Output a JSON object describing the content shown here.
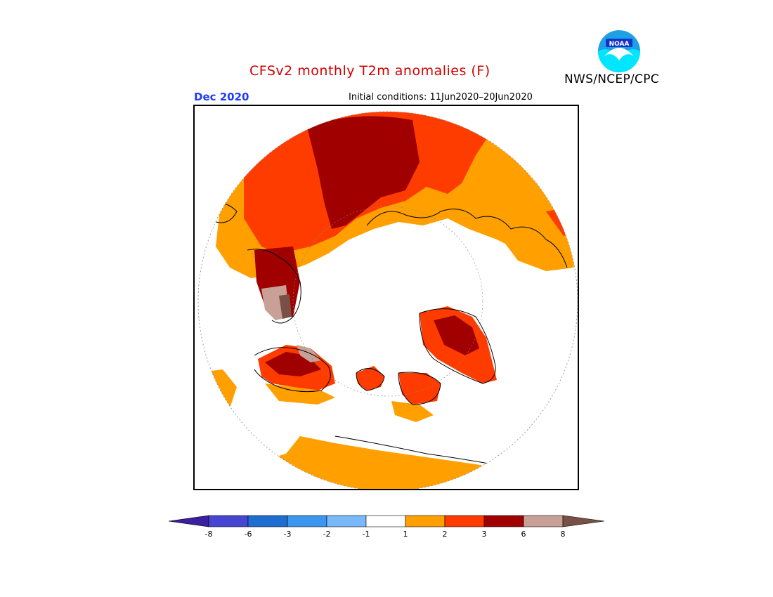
{
  "header": {
    "title": "CFSv2 monthly T2m anomalies (F)",
    "organization": "NWS/NCEP/CPC",
    "logo_text": "NOAA",
    "month": "Dec 2020",
    "initial_conditions": "Initial conditions: 11Jun2020–20Jun2020"
  },
  "colorbar": {
    "labels": [
      "-8",
      "-6",
      "-3",
      "-2",
      "-1",
      "1",
      "2",
      "3",
      "6",
      "8"
    ],
    "colors": [
      "#3c1ea0",
      "#4646d2",
      "#1e6ed2",
      "#3c96f0",
      "#78b9fa",
      "#ffffff",
      "#ffa000",
      "#ff3c00",
      "#a00000",
      "#c8a096",
      "#785046"
    ]
  },
  "legend_colors": {
    "anom_1_2": "#ffa000",
    "anom_2_3": "#ff3c00",
    "anom_3_6": "#a00000",
    "anom_6_8": "#c8a096",
    "anom_gt8": "#785046",
    "coastline": "#000000",
    "grid": "#888888"
  }
}
